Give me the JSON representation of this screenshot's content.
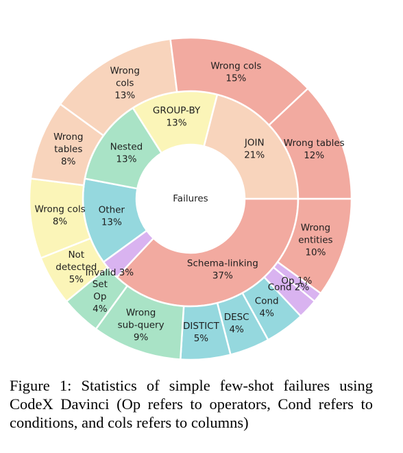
{
  "caption": "Figure 1: Statistics of simple few-shot failures using CodeX Davinci (Op refers to operators, Cond refers to conditions, and cols refers to columns)",
  "chart_data": {
    "type": "sunburst",
    "center_label": "Failures",
    "inner": [
      {
        "label": "Schema-linking",
        "pct_label": "37%",
        "value": 37,
        "color": "#f2aaa0"
      },
      {
        "label": "Invalid",
        "pct_label": "3%",
        "value": 3,
        "color": "#d9b3f0",
        "inline": true
      },
      {
        "label": "Other",
        "pct_label": "13%",
        "value": 13,
        "color": "#95d8de"
      },
      {
        "label": "Nested",
        "pct_label": "13%",
        "value": 13,
        "color": "#a9e3c6"
      },
      {
        "label": "GROUP-BY",
        "pct_label": "13%",
        "value": 13,
        "color": "#fbf5b8"
      },
      {
        "label": "JOIN",
        "pct_label": "21%",
        "value": 21,
        "color": "#f8d4bc"
      }
    ],
    "outer": [
      {
        "lines": [
          "Wrong",
          "entities"
        ],
        "pct_label": "10%",
        "value": 10,
        "color": "#f2aaa0"
      },
      {
        "lines": [
          "Op"
        ],
        "pct_label": "1%",
        "value": 1,
        "color": "#d9b3f0",
        "inline": true
      },
      {
        "lines": [
          "Cond"
        ],
        "pct_label": "2%",
        "value": 2,
        "color": "#d9b3f0",
        "inline": true
      },
      {
        "lines": [
          "Cond"
        ],
        "pct_label": "4%",
        "value": 4,
        "color": "#95d8de"
      },
      {
        "lines": [
          "DESC"
        ],
        "pct_label": "4%",
        "value": 4,
        "color": "#95d8de"
      },
      {
        "lines": [
          "DISTICT"
        ],
        "pct_label": "5%",
        "value": 5,
        "color": "#95d8de"
      },
      {
        "lines": [
          "Wrong",
          "sub-query"
        ],
        "pct_label": "9%",
        "value": 9,
        "color": "#a9e3c6"
      },
      {
        "lines": [
          "Set",
          "Op"
        ],
        "pct_label": "4%",
        "value": 4,
        "color": "#a9e3c6"
      },
      {
        "lines": [
          "Not",
          "detected"
        ],
        "pct_label": "5%",
        "value": 5,
        "color": "#fbf5b8"
      },
      {
        "lines": [
          "Wrong cols"
        ],
        "pct_label": "8%",
        "value": 8,
        "color": "#fbf5b8"
      },
      {
        "lines": [
          "Wrong",
          "tables"
        ],
        "pct_label": "8%",
        "value": 8,
        "color": "#f8d4bc"
      },
      {
        "lines": [
          "Wrong",
          "cols"
        ],
        "pct_label": "13%",
        "value": 13,
        "color": "#f8d4bc"
      },
      {
        "lines": [
          "Wrong cols"
        ],
        "pct_label": "15%",
        "value": 15,
        "color": "#f2aaa0"
      },
      {
        "lines": [
          "Wrong tables"
        ],
        "pct_label": "12%",
        "value": 12,
        "color": "#f2aaa0"
      }
    ]
  }
}
